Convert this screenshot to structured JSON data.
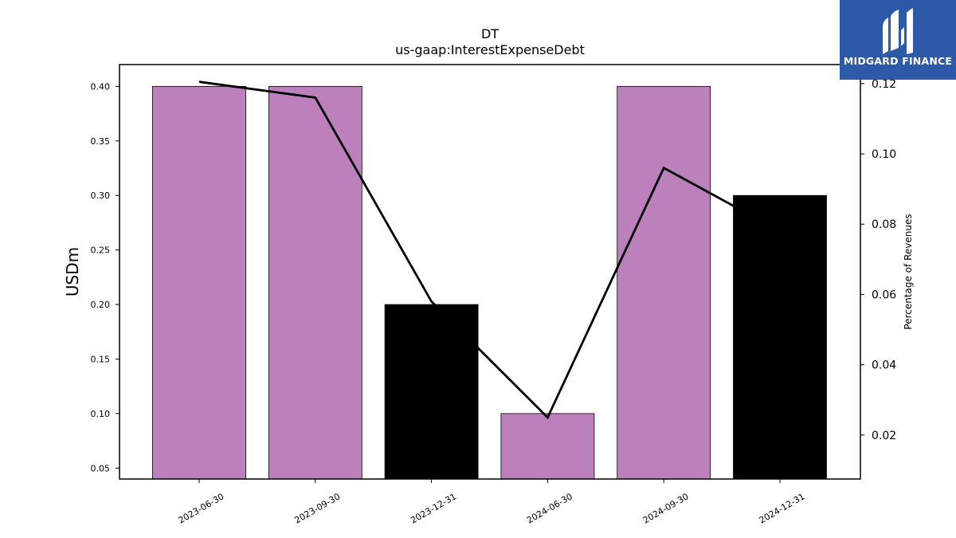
{
  "chart_data": {
    "type": "bar",
    "title": "DT",
    "subtitle": "us-gaap:InterestExpenseDebt",
    "ylabel": "USDm",
    "ylabel_right": "Percentage of Revenues",
    "categories": [
      "2023-06-30",
      "2023-09-30",
      "2023-12-31",
      "2024-06-30",
      "2024-09-30",
      "2024-12-31"
    ],
    "series": [
      {
        "type": "bar",
        "values": [
          0.4,
          0.4,
          0.2,
          0.1,
          0.4,
          0.3
        ],
        "bar_colors": [
          "#bc80bd",
          "#bc80bd",
          "#000000",
          "#bc80bd",
          "#bc80bd",
          "#000000"
        ]
      },
      {
        "type": "line",
        "axis": "right",
        "values": [
          0.1205,
          0.116,
          0.058,
          0.025,
          0.096,
          0.078
        ],
        "color": "#000000"
      }
    ],
    "ylim": [
      0.04,
      0.42
    ],
    "ylim_right": [
      0.0075,
      0.1254
    ],
    "yticks": [
      "0.05",
      "0.10",
      "0.15",
      "0.20",
      "0.25",
      "0.30",
      "0.35",
      "0.40"
    ],
    "yticks_right": [
      "0.02",
      "0.04",
      "0.06",
      "0.08",
      "0.10",
      "0.12"
    ],
    "grid": false
  },
  "logo": {
    "text": "MIDGARD FINANCE",
    "background": "#2d5aa8"
  }
}
